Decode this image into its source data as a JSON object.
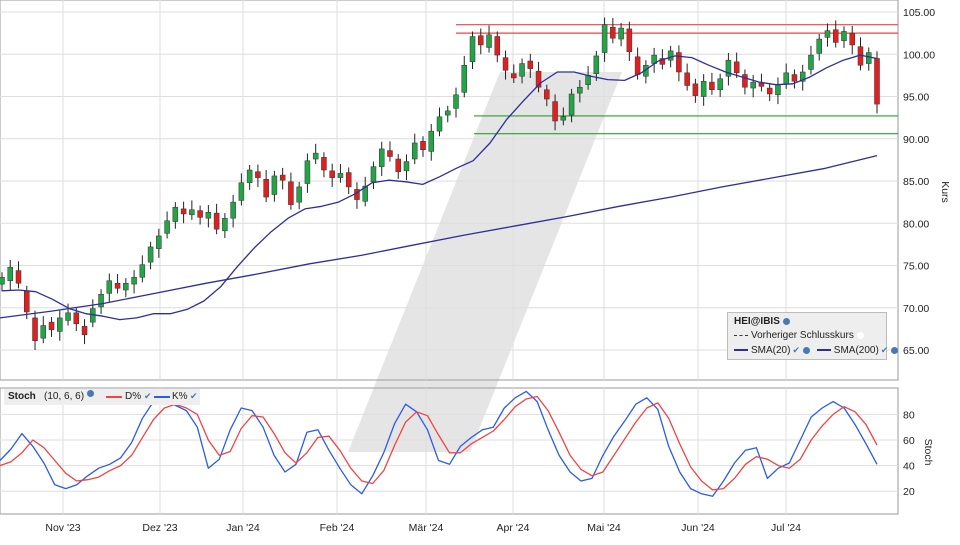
{
  "colors": {
    "up": "#22a447",
    "down": "#e02020",
    "sma20": "#2e2e9a",
    "sma200": "#2e2e9a",
    "resistance": "#ee4444",
    "support": "#2aa02a",
    "k_line": "#2a5ce6",
    "d_line": "#ee4444",
    "grid": "#dedede",
    "watermark": "#cfcfcf"
  },
  "legend": {
    "symbol": "HEI@IBIS",
    "prev_close": "Vorheriger Schlusskurs",
    "sma20": "SMA(20)",
    "sma200": "SMA(200)"
  },
  "stoch_header": {
    "title": "Stoch",
    "params": "(10, 6, 6)",
    "d_label": "D%",
    "k_label": "K%"
  },
  "chart_data": [
    {
      "type": "line",
      "title": "",
      "ylabel": "Kurs",
      "ylim": [
        60.5,
        105.5
      ],
      "y_ticks": [
        "105.00",
        "100.00",
        "95.00",
        "90.00",
        "85.00",
        "80.00",
        "75.00",
        "70.00",
        "65.00"
      ],
      "x_ticks": [
        "Nov '23",
        "Dez '23",
        "Jan '24",
        "Feb '24",
        "Mär '24",
        "Apr '24",
        "Mai '24",
        "Jun '24",
        "Jul '24"
      ],
      "grid": true,
      "legend_position": "bottom-right",
      "candles_close": [
        [
          72.8,
          73.6
        ],
        [
          73.2,
          74.8
        ],
        [
          74.4,
          72.9
        ],
        [
          72.0,
          69.5
        ],
        [
          68.8,
          66.1
        ],
        [
          66.4,
          67.9
        ],
        [
          68.3,
          67.4
        ],
        [
          67.2,
          68.8
        ],
        [
          68.5,
          69.4
        ],
        [
          69.4,
          68.1
        ],
        [
          67.8,
          66.8
        ],
        [
          68.3,
          69.9
        ],
        [
          70.1,
          71.6
        ],
        [
          71.7,
          73.2
        ],
        [
          72.9,
          72.3
        ],
        [
          72.1,
          72.9
        ],
        [
          72.8,
          73.6
        ],
        [
          73.6,
          75.1
        ],
        [
          75.4,
          77.2
        ],
        [
          77.0,
          78.5
        ],
        [
          78.8,
          80.3
        ],
        [
          80.2,
          81.9
        ],
        [
          81.7,
          81.1
        ],
        [
          81.0,
          81.6
        ],
        [
          81.5,
          80.7
        ],
        [
          80.6,
          81.3
        ],
        [
          81.2,
          79.3
        ],
        [
          79.1,
          80.6
        ],
        [
          80.6,
          82.5
        ],
        [
          82.7,
          84.8
        ],
        [
          84.8,
          86.3
        ],
        [
          86.1,
          85.4
        ],
        [
          85.2,
          83.1
        ],
        [
          83.4,
          85.6
        ],
        [
          85.7,
          85.1
        ],
        [
          84.9,
          82.2
        ],
        [
          82.5,
          84.3
        ],
        [
          84.7,
          87.4
        ],
        [
          87.6,
          88.3
        ],
        [
          87.8,
          86.3
        ],
        [
          86.2,
          85.4
        ],
        [
          85.4,
          85.9
        ],
        [
          86.0,
          84.3
        ],
        [
          84.0,
          82.8
        ],
        [
          82.6,
          84.4
        ],
        [
          84.9,
          86.7
        ],
        [
          86.7,
          88.8
        ],
        [
          88.6,
          87.9
        ],
        [
          87.6,
          86.1
        ],
        [
          86.2,
          87.3
        ],
        [
          87.6,
          89.5
        ],
        [
          89.7,
          88.7
        ],
        [
          88.5,
          90.9
        ],
        [
          90.9,
          92.6
        ],
        [
          92.8,
          93.3
        ],
        [
          93.6,
          95.2
        ],
        [
          95.5,
          98.7
        ],
        [
          99.1,
          102.1
        ],
        [
          102.2,
          101.1
        ],
        [
          100.8,
          102.3
        ],
        [
          102.1,
          99.9
        ],
        [
          99.6,
          98.1
        ],
        [
          97.7,
          97.2
        ],
        [
          97.4,
          98.9
        ],
        [
          99.2,
          98.3
        ],
        [
          98.0,
          96.1
        ],
        [
          95.8,
          94.7
        ],
        [
          94.4,
          92.1
        ],
        [
          92.2,
          92.6
        ],
        [
          92.8,
          95.3
        ],
        [
          95.4,
          96.1
        ],
        [
          96.4,
          97.5
        ],
        [
          97.7,
          99.8
        ],
        [
          100.2,
          103.5
        ],
        [
          103.2,
          101.9
        ],
        [
          101.8,
          103.1
        ],
        [
          103.0,
          100.3
        ],
        [
          99.7,
          97.6
        ],
        [
          97.4,
          98.7
        ],
        [
          98.9,
          99.9
        ],
        [
          99.5,
          98.8
        ],
        [
          99.3,
          100.4
        ],
        [
          100.2,
          97.9
        ],
        [
          97.8,
          96.3
        ],
        [
          96.5,
          95.1
        ],
        [
          95.0,
          96.8
        ],
        [
          96.7,
          95.8
        ],
        [
          95.8,
          97.1
        ],
        [
          97.4,
          99.3
        ],
        [
          99.1,
          97.8
        ],
        [
          97.6,
          96.1
        ],
        [
          96.0,
          96.7
        ],
        [
          96.6,
          96.2
        ],
        [
          96.0,
          95.3
        ],
        [
          95.2,
          96.4
        ],
        [
          96.5,
          97.8
        ],
        [
          97.6,
          96.8
        ],
        [
          96.8,
          97.9
        ],
        [
          98.2,
          99.9
        ],
        [
          100.1,
          101.8
        ],
        [
          102.0,
          102.8
        ],
        [
          102.9,
          101.4
        ],
        [
          101.6,
          102.7
        ],
        [
          102.5,
          101.1
        ],
        [
          100.9,
          98.7
        ],
        [
          98.9,
          100.2
        ],
        [
          99.5,
          94.1
        ]
      ],
      "sma20": [
        72.0,
        72.1,
        71.9,
        71.0,
        69.9,
        69.3,
        69.0,
        68.6,
        68.8,
        69.3,
        69.3,
        69.8,
        70.8,
        72.5,
        74.9,
        77.1,
        79.0,
        80.6,
        81.7,
        82.0,
        82.5,
        83.5,
        84.8,
        85.1,
        84.9,
        84.6,
        85.5,
        86.5,
        87.4,
        89.5,
        92.3,
        94.5,
        96.6,
        97.9,
        97.9,
        97.4,
        97.0,
        96.9,
        97.8,
        99.2,
        99.8,
        99.6,
        98.7,
        97.9,
        97.3,
        96.7,
        96.4,
        96.5,
        97.3,
        98.4,
        99.3,
        99.9,
        99.5
      ],
      "sma200": [
        68.8,
        69.6,
        70.5,
        71.7,
        72.9,
        74.0,
        75.2,
        76.2,
        77.4,
        78.6,
        79.7,
        80.8,
        82.0,
        83.1,
        84.3,
        85.4,
        86.5,
        88.0
      ],
      "resistance": [
        103.5,
        102.5
      ],
      "support": [
        92.7,
        90.6
      ]
    },
    {
      "type": "line",
      "title": "Stoch",
      "ylabel": "Stoch",
      "ylim": [
        0,
        100
      ],
      "y_ticks": [
        "80",
        "60",
        "40",
        "20"
      ],
      "series": [
        {
          "name": "K%",
          "values": [
            44,
            53,
            65,
            55,
            42,
            25,
            22,
            25,
            32,
            38,
            41,
            46,
            58,
            77,
            90,
            92,
            87,
            83,
            70,
            38,
            45,
            68,
            85,
            83,
            70,
            48,
            35,
            41,
            66,
            68,
            52,
            38,
            25,
            18,
            32,
            50,
            73,
            88,
            82,
            68,
            44,
            41,
            55,
            62,
            68,
            70,
            85,
            93,
            98,
            90,
            68,
            48,
            35,
            28,
            30,
            48,
            63,
            75,
            88,
            93,
            84,
            55,
            35,
            22,
            18,
            16,
            28,
            42,
            52,
            54,
            30,
            38,
            42,
            60,
            78,
            85,
            90,
            85,
            72,
            57,
            41
          ]
        },
        {
          "name": "D%",
          "values": [
            40,
            43,
            50,
            60,
            54,
            44,
            34,
            28,
            29,
            31,
            36,
            40,
            48,
            62,
            76,
            85,
            88,
            85,
            80,
            60,
            48,
            51,
            69,
            79,
            78,
            65,
            50,
            42,
            50,
            62,
            63,
            52,
            38,
            28,
            26,
            36,
            56,
            74,
            82,
            79,
            64,
            50,
            50,
            57,
            62,
            67,
            76,
            86,
            92,
            94,
            83,
            66,
            48,
            37,
            32,
            35,
            48,
            61,
            74,
            85,
            89,
            77,
            57,
            39,
            28,
            21,
            22,
            30,
            41,
            47,
            45,
            40,
            38,
            45,
            60,
            71,
            80,
            86,
            82,
            72,
            56
          ]
        }
      ]
    }
  ]
}
